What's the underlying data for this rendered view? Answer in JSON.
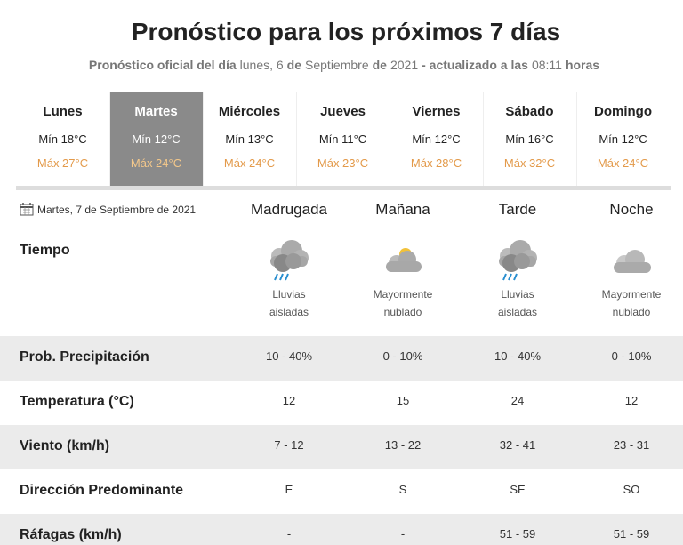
{
  "header": {
    "title": "Pronóstico para los próximos 7 días",
    "subtitle": [
      {
        "text": "Pronóstico oficial del día",
        "bold": true
      },
      {
        "text": "lunes, 6",
        "bold": false
      },
      {
        "text": "de",
        "bold": true
      },
      {
        "text": "Septiembre",
        "bold": false
      },
      {
        "text": "de",
        "bold": true
      },
      {
        "text": "2021",
        "bold": false
      },
      {
        "text": "- actualizado a las",
        "bold": true
      },
      {
        "text": "08:11",
        "bold": false
      },
      {
        "text": "horas",
        "bold": true
      }
    ]
  },
  "days": [
    {
      "name": "Lunes",
      "min": "Mín 18°C",
      "max": "Máx 27°C"
    },
    {
      "name": "Martes",
      "min": "Mín 12°C",
      "max": "Máx 24°C",
      "selected": true
    },
    {
      "name": "Miércoles",
      "min": "Mín 13°C",
      "max": "Máx 24°C"
    },
    {
      "name": "Jueves",
      "min": "Mín 11°C",
      "max": "Máx 23°C"
    },
    {
      "name": "Viernes",
      "min": "Mín 12°C",
      "max": "Máx 28°C"
    },
    {
      "name": "Sábado",
      "min": "Mín 16°C",
      "max": "Máx 32°C"
    },
    {
      "name": "Domingo",
      "min": "Mín 12°C",
      "max": "Máx 24°C"
    }
  ],
  "detail": {
    "date": "Martes, 7 de Septiembre de 2021",
    "periods": [
      "Madrugada",
      "Mañana",
      "Tarde",
      "Noche"
    ],
    "weather": {
      "label": "Tiempo",
      "descriptions": [
        [
          "Lluvias",
          "aisladas"
        ],
        [
          "Mayormente",
          "nublado"
        ],
        [
          "Lluvias",
          "aisladas"
        ],
        [
          "Mayormente",
          "nublado"
        ]
      ]
    },
    "rows": [
      {
        "label": "Prob. Precipitación",
        "values": [
          "10 - 40%",
          "0 - 10%",
          "10 - 40%",
          "0 - 10%"
        ]
      },
      {
        "label": "Temperatura (°C)",
        "values": [
          "12",
          "15",
          "24",
          "12"
        ]
      },
      {
        "label": "Viento (km/h)",
        "values": [
          "7 - 12",
          "13 - 22",
          "32 - 41",
          "23 - 31"
        ]
      },
      {
        "label": "Dirección Predominante",
        "values": [
          "E",
          "S",
          "SE",
          "SO"
        ]
      },
      {
        "label": "Ráfagas (km/h)",
        "values": [
          "-",
          "-",
          "51 - 59",
          "51 - 59"
        ]
      }
    ]
  }
}
